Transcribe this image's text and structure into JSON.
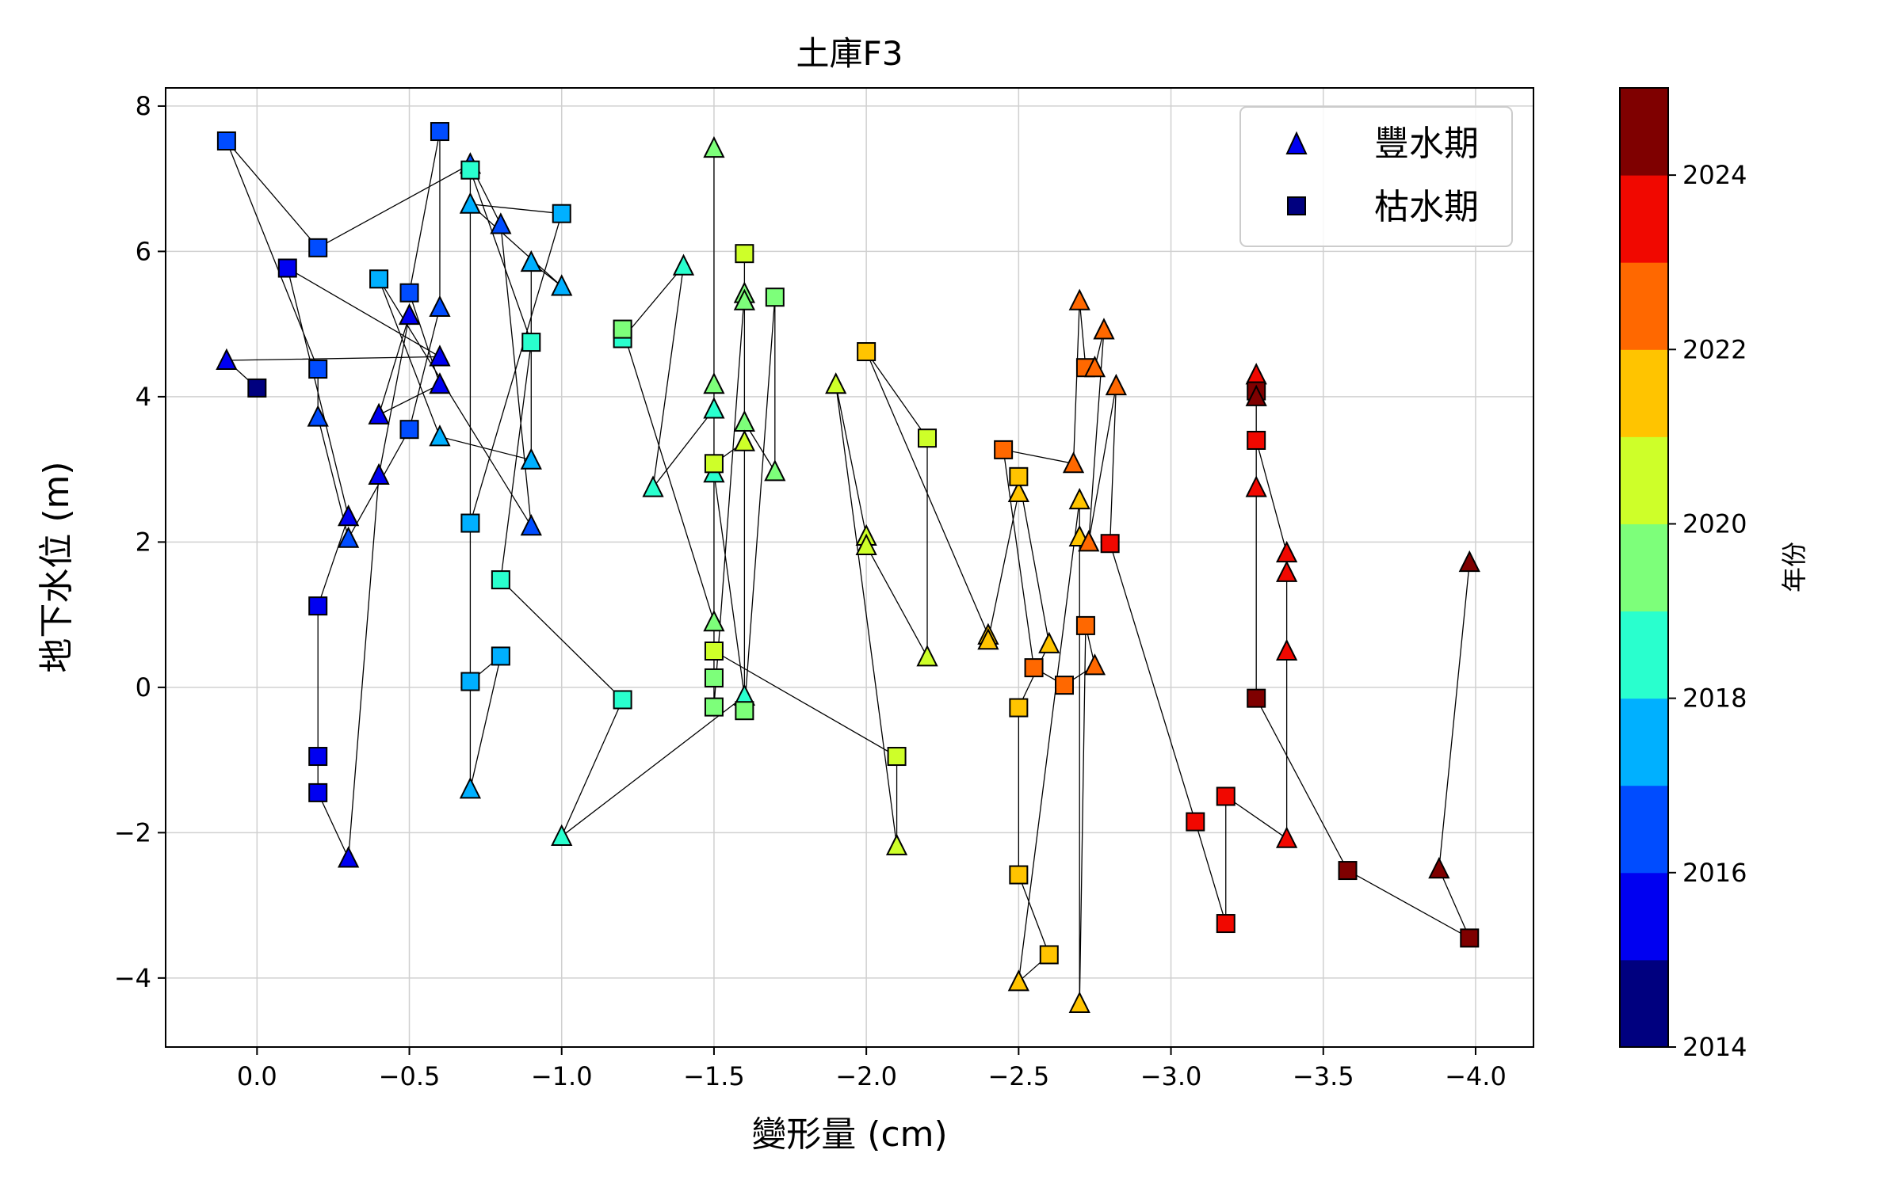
{
  "chart_data": {
    "type": "scatter",
    "title": "土庫F3",
    "xlabel": "變形量 (cm)",
    "ylabel": "地下水位 (m)",
    "xlim": [
      0.3,
      -4.19
    ],
    "ylim": [
      -4.95,
      8.25
    ],
    "x_ticks": [
      0.0,
      -0.5,
      -1.0,
      -1.5,
      -2.0,
      -2.5,
      -3.0,
      -3.5,
      -4.0
    ],
    "x_tick_labels": [
      "0.0",
      "−0.5",
      "−1.0",
      "−1.5",
      "−2.0",
      "−2.5",
      "−3.0",
      "−3.5",
      "−4.0"
    ],
    "y_ticks": [
      8,
      6,
      4,
      2,
      0,
      -2,
      -4
    ],
    "y_tick_labels": [
      "8",
      "6",
      "4",
      "2",
      "0",
      "−2",
      "−4"
    ],
    "grid": true,
    "legend": {
      "placement": "top-right",
      "entries": [
        {
          "label": "豐水期",
          "marker": "triangle"
        },
        {
          "label": "枯水期",
          "marker": "square"
        }
      ]
    },
    "colorbar": {
      "label": "年份",
      "range": [
        2014,
        2025
      ],
      "ticks": [
        2014,
        2016,
        2018,
        2020,
        2022,
        2024
      ],
      "tick_labels": [
        "2014",
        "2016",
        "2018",
        "2020",
        "2022",
        "2024"
      ],
      "bin_colors": [
        "#00007f",
        "#0000f1",
        "#004cff",
        "#00b0ff",
        "#29ffce",
        "#7dff7a",
        "#ceff29",
        "#ffc400",
        "#ff6800",
        "#f10800",
        "#7f0000"
      ]
    },
    "points": [
      {
        "x": 0.0,
        "y": 4.12,
        "year": 2014,
        "season": "dry"
      },
      {
        "x": 0.1,
        "y": 4.5,
        "year": 2015,
        "season": "wet"
      },
      {
        "x": -0.6,
        "y": 4.55,
        "year": 2015,
        "season": "wet"
      },
      {
        "x": -0.1,
        "y": 5.77,
        "year": 2015,
        "season": "dry"
      },
      {
        "x": -0.3,
        "y": 2.35,
        "year": 2015,
        "season": "wet"
      },
      {
        "x": -0.2,
        "y": 1.12,
        "year": 2015,
        "season": "dry"
      },
      {
        "x": -0.2,
        "y": -0.95,
        "year": 2015,
        "season": "dry"
      },
      {
        "x": -0.2,
        "y": -1.45,
        "year": 2015,
        "season": "dry"
      },
      {
        "x": -0.3,
        "y": -2.35,
        "year": 2015,
        "season": "wet"
      },
      {
        "x": -0.4,
        "y": 2.92,
        "year": 2015,
        "season": "wet"
      },
      {
        "x": -0.5,
        "y": 5.12,
        "year": 2015,
        "season": "wet"
      },
      {
        "x": -0.4,
        "y": 3.75,
        "year": 2015,
        "season": "wet"
      },
      {
        "x": -0.6,
        "y": 4.17,
        "year": 2015,
        "season": "wet"
      },
      {
        "x": -0.5,
        "y": 5.43,
        "year": 2016,
        "season": "dry"
      },
      {
        "x": -0.6,
        "y": 7.65,
        "year": 2016,
        "season": "dry"
      },
      {
        "x": -0.6,
        "y": 5.23,
        "year": 2016,
        "season": "wet"
      },
      {
        "x": -0.5,
        "y": 3.55,
        "year": 2016,
        "season": "dry"
      },
      {
        "x": -0.3,
        "y": 2.05,
        "year": 2016,
        "season": "wet"
      },
      {
        "x": -0.2,
        "y": 3.72,
        "year": 2016,
        "season": "wet"
      },
      {
        "x": -0.2,
        "y": 4.38,
        "year": 2016,
        "season": "dry"
      },
      {
        "x": 0.1,
        "y": 7.52,
        "year": 2016,
        "season": "dry"
      },
      {
        "x": -0.2,
        "y": 6.05,
        "year": 2016,
        "season": "dry"
      },
      {
        "x": -0.7,
        "y": 7.2,
        "year": 2016,
        "season": "wet"
      },
      {
        "x": -0.8,
        "y": 6.37,
        "year": 2016,
        "season": "wet"
      },
      {
        "x": -0.9,
        "y": 2.22,
        "year": 2016,
        "season": "wet"
      },
      {
        "x": -0.4,
        "y": 5.62,
        "year": 2017,
        "season": "dry"
      },
      {
        "x": -0.6,
        "y": 3.45,
        "year": 2017,
        "season": "wet"
      },
      {
        "x": -0.9,
        "y": 3.13,
        "year": 2017,
        "season": "wet"
      },
      {
        "x": -0.9,
        "y": 5.85,
        "year": 2017,
        "season": "wet"
      },
      {
        "x": -1.0,
        "y": 5.52,
        "year": 2017,
        "season": "wet"
      },
      {
        "x": -0.7,
        "y": 6.65,
        "year": 2017,
        "season": "wet"
      },
      {
        "x": -1.0,
        "y": 6.52,
        "year": 2017,
        "season": "dry"
      },
      {
        "x": -0.7,
        "y": 2.26,
        "year": 2017,
        "season": "dry"
      },
      {
        "x": -0.7,
        "y": 0.08,
        "year": 2017,
        "season": "dry"
      },
      {
        "x": -0.8,
        "y": 0.43,
        "year": 2017,
        "season": "dry"
      },
      {
        "x": -0.7,
        "y": -1.4,
        "year": 2017,
        "season": "wet"
      },
      {
        "x": -0.7,
        "y": 7.12,
        "year": 2018,
        "season": "dry"
      },
      {
        "x": -0.9,
        "y": 4.75,
        "year": 2018,
        "season": "dry"
      },
      {
        "x": -0.8,
        "y": 1.48,
        "year": 2018,
        "season": "dry"
      },
      {
        "x": -1.2,
        "y": -0.17,
        "year": 2018,
        "season": "dry"
      },
      {
        "x": -1.0,
        "y": -2.05,
        "year": 2018,
        "season": "wet"
      },
      {
        "x": -1.6,
        "y": -0.12,
        "year": 2018,
        "season": "wet"
      },
      {
        "x": -1.5,
        "y": 2.95,
        "year": 2018,
        "season": "wet"
      },
      {
        "x": -1.5,
        "y": 3.83,
        "year": 2018,
        "season": "wet"
      },
      {
        "x": -1.3,
        "y": 2.75,
        "year": 2018,
        "season": "wet"
      },
      {
        "x": -1.4,
        "y": 5.8,
        "year": 2018,
        "season": "wet"
      },
      {
        "x": -1.2,
        "y": 4.8,
        "year": 2018,
        "season": "dry"
      },
      {
        "x": -1.2,
        "y": 4.93,
        "year": 2019,
        "season": "dry"
      },
      {
        "x": -1.5,
        "y": 0.9,
        "year": 2019,
        "season": "wet"
      },
      {
        "x": -1.5,
        "y": 4.17,
        "year": 2019,
        "season": "wet"
      },
      {
        "x": -1.5,
        "y": 7.42,
        "year": 2019,
        "season": "wet"
      },
      {
        "x": -1.5,
        "y": 0.13,
        "year": 2019,
        "season": "dry"
      },
      {
        "x": -1.5,
        "y": -0.27,
        "year": 2019,
        "season": "dry"
      },
      {
        "x": -1.6,
        "y": 5.42,
        "year": 2019,
        "season": "wet"
      },
      {
        "x": -1.6,
        "y": 5.32,
        "year": 2019,
        "season": "wet"
      },
      {
        "x": -1.6,
        "y": 3.65,
        "year": 2019,
        "season": "wet"
      },
      {
        "x": -1.7,
        "y": 2.97,
        "year": 2019,
        "season": "wet"
      },
      {
        "x": -1.7,
        "y": 5.37,
        "year": 2019,
        "season": "dry"
      },
      {
        "x": -1.6,
        "y": -0.32,
        "year": 2019,
        "season": "dry"
      },
      {
        "x": -1.6,
        "y": 5.97,
        "year": 2020,
        "season": "dry"
      },
      {
        "x": -1.6,
        "y": 3.38,
        "year": 2020,
        "season": "wet"
      },
      {
        "x": -1.5,
        "y": 3.08,
        "year": 2020,
        "season": "dry"
      },
      {
        "x": -1.5,
        "y": 0.5,
        "year": 2020,
        "season": "dry"
      },
      {
        "x": -2.1,
        "y": -0.95,
        "year": 2020,
        "season": "dry"
      },
      {
        "x": -2.1,
        "y": -2.18,
        "year": 2020,
        "season": "wet"
      },
      {
        "x": -1.9,
        "y": 4.17,
        "year": 2020,
        "season": "wet"
      },
      {
        "x": -2.0,
        "y": 2.08,
        "year": 2020,
        "season": "wet"
      },
      {
        "x": -2.0,
        "y": 1.95,
        "year": 2020,
        "season": "wet"
      },
      {
        "x": -2.2,
        "y": 0.42,
        "year": 2020,
        "season": "wet"
      },
      {
        "x": -2.2,
        "y": 3.43,
        "year": 2020,
        "season": "dry"
      },
      {
        "x": -2.0,
        "y": 4.62,
        "year": 2021,
        "season": "dry"
      },
      {
        "x": -2.4,
        "y": 0.72,
        "year": 2021,
        "season": "wet"
      },
      {
        "x": -2.4,
        "y": 0.65,
        "year": 2021,
        "season": "wet"
      },
      {
        "x": -2.5,
        "y": 2.68,
        "year": 2021,
        "season": "wet"
      },
      {
        "x": -2.5,
        "y": 2.9,
        "year": 2021,
        "season": "dry"
      },
      {
        "x": -2.6,
        "y": 0.6,
        "year": 2021,
        "season": "wet"
      },
      {
        "x": -2.5,
        "y": -0.28,
        "year": 2021,
        "season": "dry"
      },
      {
        "x": -2.5,
        "y": -2.58,
        "year": 2021,
        "season": "dry"
      },
      {
        "x": -2.6,
        "y": -3.68,
        "year": 2021,
        "season": "dry"
      },
      {
        "x": -2.5,
        "y": -4.05,
        "year": 2021,
        "season": "wet"
      },
      {
        "x": -2.7,
        "y": 2.58,
        "year": 2021,
        "season": "wet"
      },
      {
        "x": -2.7,
        "y": 2.07,
        "year": 2021,
        "season": "wet"
      },
      {
        "x": -2.7,
        "y": -4.35,
        "year": 2021,
        "season": "wet"
      },
      {
        "x": -2.72,
        "y": 0.85,
        "year": 2022,
        "season": "dry"
      },
      {
        "x": -2.75,
        "y": 0.3,
        "year": 2022,
        "season": "wet"
      },
      {
        "x": -2.65,
        "y": 0.03,
        "year": 2022,
        "season": "dry"
      },
      {
        "x": -2.55,
        "y": 0.27,
        "year": 2022,
        "season": "dry"
      },
      {
        "x": -2.45,
        "y": 3.27,
        "year": 2022,
        "season": "dry"
      },
      {
        "x": -2.68,
        "y": 3.08,
        "year": 2022,
        "season": "wet"
      },
      {
        "x": -2.7,
        "y": 5.32,
        "year": 2022,
        "season": "wet"
      },
      {
        "x": -2.72,
        "y": 4.4,
        "year": 2022,
        "season": "dry"
      },
      {
        "x": -2.75,
        "y": 4.4,
        "year": 2022,
        "season": "wet"
      },
      {
        "x": -2.78,
        "y": 4.92,
        "year": 2022,
        "season": "wet"
      },
      {
        "x": -2.73,
        "y": 2.0,
        "year": 2022,
        "season": "wet"
      },
      {
        "x": -2.82,
        "y": 4.15,
        "year": 2022,
        "season": "wet"
      },
      {
        "x": -2.8,
        "y": 1.98,
        "year": 2023,
        "season": "dry"
      },
      {
        "x": -3.08,
        "y": -1.85,
        "year": 2023,
        "season": "dry"
      },
      {
        "x": -3.18,
        "y": -3.25,
        "year": 2023,
        "season": "dry"
      },
      {
        "x": -3.18,
        "y": -1.5,
        "year": 2023,
        "season": "dry"
      },
      {
        "x": -3.38,
        "y": -2.08,
        "year": 2023,
        "season": "wet"
      },
      {
        "x": -3.38,
        "y": 0.5,
        "year": 2023,
        "season": "wet"
      },
      {
        "x": -3.38,
        "y": 1.58,
        "year": 2023,
        "season": "wet"
      },
      {
        "x": -3.38,
        "y": 1.85,
        "year": 2023,
        "season": "wet"
      },
      {
        "x": -3.28,
        "y": 3.4,
        "year": 2023,
        "season": "dry"
      },
      {
        "x": -3.28,
        "y": 4.3,
        "year": 2023,
        "season": "wet"
      },
      {
        "x": -3.28,
        "y": 2.75,
        "year": 2023,
        "season": "wet"
      },
      {
        "x": -3.28,
        "y": 4.08,
        "year": 2024,
        "season": "dry"
      },
      {
        "x": -3.28,
        "y": 4.0,
        "year": 2024,
        "season": "wet"
      },
      {
        "x": -3.28,
        "y": -0.15,
        "year": 2024,
        "season": "dry"
      },
      {
        "x": -3.58,
        "y": -2.52,
        "year": 2024,
        "season": "dry"
      },
      {
        "x": -3.98,
        "y": -3.45,
        "year": 2024,
        "season": "dry"
      },
      {
        "x": -3.88,
        "y": -2.5,
        "year": 2024,
        "season": "wet"
      },
      {
        "x": -3.98,
        "y": 1.72,
        "year": 2024,
        "season": "wet"
      }
    ]
  }
}
